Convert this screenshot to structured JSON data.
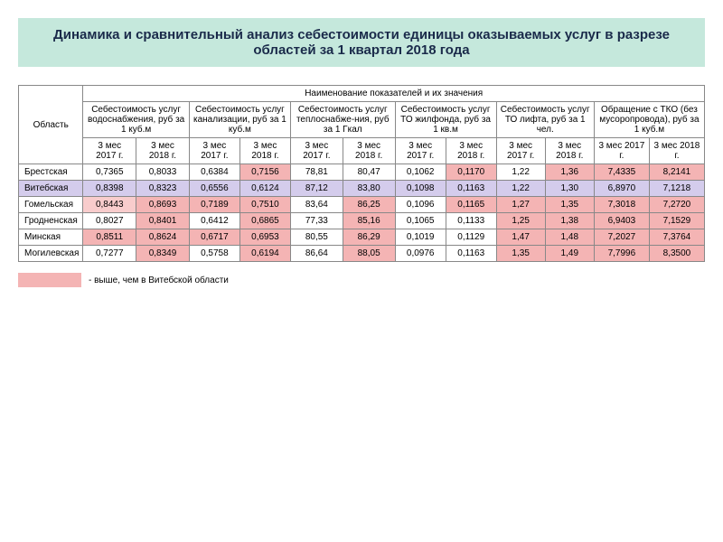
{
  "title": "Динамика и сравнительный анализ себестоимости единицы оказываемых услуг в разрезе областей за 1 квартал 2018 года",
  "table": {
    "region_header": "Область",
    "super_header": "Наименование показателей и их значения",
    "group_headers": [
      "Себестоимость услуг водоснабжения, руб за 1 куб.м",
      "Себестоимость услуг канализации, руб за 1 куб.м",
      "Себестоимость услуг теплоснабже-ния, руб за 1 Гкал",
      "Себестоимость услуг ТО жилфонда, руб за 1 кв.м",
      "Себестоимость услуг ТО лифта, руб за 1 чел.",
      "Обращение с ТКО (без мусоропровода), руб за 1 куб.м"
    ],
    "period_2017": "3 мес 2017 г.",
    "period_2018": "3 мес 2018 г.",
    "rows": [
      {
        "region": "Брестская",
        "cells": [
          {
            "v": "0,7365",
            "hl": ""
          },
          {
            "v": "0,8033",
            "hl": ""
          },
          {
            "v": "0,6384",
            "hl": ""
          },
          {
            "v": "0,7156",
            "hl": "hl-pink"
          },
          {
            "v": "78,81",
            "hl": ""
          },
          {
            "v": "80,47",
            "hl": ""
          },
          {
            "v": "0,1062",
            "hl": ""
          },
          {
            "v": "0,1170",
            "hl": "hl-pink"
          },
          {
            "v": "1,22",
            "hl": ""
          },
          {
            "v": "1,36",
            "hl": "hl-pink"
          },
          {
            "v": "7,4335",
            "hl": "hl-pink"
          },
          {
            "v": "8,2141",
            "hl": "hl-pink"
          }
        ]
      },
      {
        "region": "Витебская",
        "region_hl": "hl-lavender",
        "cells": [
          {
            "v": "0,8398",
            "hl": "hl-lavender"
          },
          {
            "v": "0,8323",
            "hl": "hl-lavender"
          },
          {
            "v": "0,6556",
            "hl": "hl-lavender"
          },
          {
            "v": "0,6124",
            "hl": "hl-lavender"
          },
          {
            "v": "87,12",
            "hl": "hl-lavender"
          },
          {
            "v": "83,80",
            "hl": "hl-lavender"
          },
          {
            "v": "0,1098",
            "hl": "hl-lavender"
          },
          {
            "v": "0,1163",
            "hl": "hl-lavender"
          },
          {
            "v": "1,22",
            "hl": "hl-lavender"
          },
          {
            "v": "1,30",
            "hl": "hl-lavender"
          },
          {
            "v": "6,8970",
            "hl": "hl-lavender"
          },
          {
            "v": "7,1218",
            "hl": "hl-lavender"
          }
        ]
      },
      {
        "region": "Гомельская",
        "cells": [
          {
            "v": "0,8443",
            "hl": "hl-lightpink"
          },
          {
            "v": "0,8693",
            "hl": "hl-pink"
          },
          {
            "v": "0,7189",
            "hl": "hl-pink"
          },
          {
            "v": "0,7510",
            "hl": "hl-pink"
          },
          {
            "v": "83,64",
            "hl": ""
          },
          {
            "v": "86,25",
            "hl": "hl-pink"
          },
          {
            "v": "0,1096",
            "hl": ""
          },
          {
            "v": "0,1165",
            "hl": "hl-pink"
          },
          {
            "v": "1,27",
            "hl": "hl-pink"
          },
          {
            "v": "1,35",
            "hl": "hl-pink"
          },
          {
            "v": "7,3018",
            "hl": "hl-pink"
          },
          {
            "v": "7,2720",
            "hl": "hl-pink"
          }
        ]
      },
      {
        "region": "Гродненская",
        "cells": [
          {
            "v": "0,8027",
            "hl": ""
          },
          {
            "v": "0,8401",
            "hl": "hl-pink"
          },
          {
            "v": "0,6412",
            "hl": ""
          },
          {
            "v": "0,6865",
            "hl": "hl-pink"
          },
          {
            "v": "77,33",
            "hl": ""
          },
          {
            "v": "85,16",
            "hl": "hl-pink"
          },
          {
            "v": "0,1065",
            "hl": ""
          },
          {
            "v": "0,1133",
            "hl": ""
          },
          {
            "v": "1,25",
            "hl": "hl-pink"
          },
          {
            "v": "1,38",
            "hl": "hl-pink"
          },
          {
            "v": "6,9403",
            "hl": "hl-pink"
          },
          {
            "v": "7,1529",
            "hl": "hl-pink"
          }
        ]
      },
      {
        "region": "Минская",
        "cells": [
          {
            "v": "0,8511",
            "hl": "hl-pink"
          },
          {
            "v": "0,8624",
            "hl": "hl-pink"
          },
          {
            "v": "0,6717",
            "hl": "hl-pink"
          },
          {
            "v": "0,6953",
            "hl": "hl-pink"
          },
          {
            "v": "80,55",
            "hl": ""
          },
          {
            "v": "86,29",
            "hl": "hl-pink"
          },
          {
            "v": "0,1019",
            "hl": ""
          },
          {
            "v": "0,1129",
            "hl": ""
          },
          {
            "v": "1,47",
            "hl": "hl-pink"
          },
          {
            "v": "1,48",
            "hl": "hl-pink"
          },
          {
            "v": "7,2027",
            "hl": "hl-pink"
          },
          {
            "v": "7,3764",
            "hl": "hl-pink"
          }
        ]
      },
      {
        "region": "Могилевская",
        "cells": [
          {
            "v": "0,7277",
            "hl": ""
          },
          {
            "v": "0,8349",
            "hl": "hl-pink"
          },
          {
            "v": "0,5758",
            "hl": ""
          },
          {
            "v": "0,6194",
            "hl": "hl-pink"
          },
          {
            "v": "86,64",
            "hl": ""
          },
          {
            "v": "88,05",
            "hl": "hl-pink"
          },
          {
            "v": "0,0976",
            "hl": ""
          },
          {
            "v": "0,1163",
            "hl": ""
          },
          {
            "v": "1,35",
            "hl": "hl-pink"
          },
          {
            "v": "1,49",
            "hl": "hl-pink"
          },
          {
            "v": "7,7996",
            "hl": "hl-pink"
          },
          {
            "v": "8,3500",
            "hl": "hl-pink"
          }
        ]
      }
    ]
  },
  "legend": "- выше, чем в Витебской области",
  "colors": {
    "title_bg": "#c5e8dc",
    "pink": "#f4b4b4",
    "lightpink": "#f8cccc",
    "lavender": "#d4ccec"
  }
}
